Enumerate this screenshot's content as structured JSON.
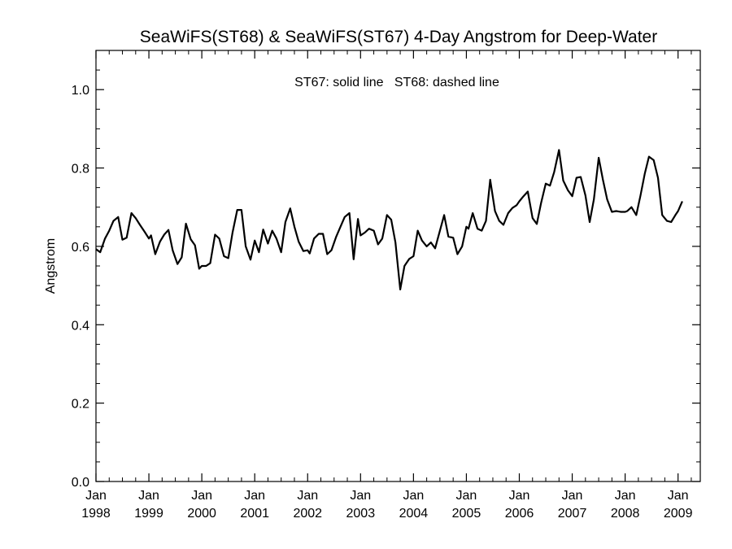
{
  "chart_data": {
    "type": "line",
    "title": "SeaWiFS(ST68) & SeaWiFS(ST67) 4-Day Angstrom for Deep-Water",
    "annotation": "ST67: solid line   ST68: dashed line",
    "xlabel": "",
    "ylabel": "Angstrom",
    "ylim": [
      0.0,
      1.1
    ],
    "xlim": [
      1998.0,
      2009.42
    ],
    "yticks": [
      {
        "value": 0.0,
        "label": "0.0"
      },
      {
        "value": 0.2,
        "label": "0.2"
      },
      {
        "value": 0.4,
        "label": "0.4"
      },
      {
        "value": 0.6,
        "label": "0.6"
      },
      {
        "value": 0.8,
        "label": "0.8"
      },
      {
        "value": 1.0,
        "label": "1.0"
      }
    ],
    "xticks": [
      {
        "value": 1998,
        "month": "Jan",
        "year": "1998"
      },
      {
        "value": 1999,
        "month": "Jan",
        "year": "1999"
      },
      {
        "value": 2000,
        "month": "Jan",
        "year": "2000"
      },
      {
        "value": 2001,
        "month": "Jan",
        "year": "2001"
      },
      {
        "value": 2002,
        "month": "Jan",
        "year": "2002"
      },
      {
        "value": 2003,
        "month": "Jan",
        "year": "2003"
      },
      {
        "value": 2004,
        "month": "Jan",
        "year": "2004"
      },
      {
        "value": 2005,
        "month": "Jan",
        "year": "2005"
      },
      {
        "value": 2006,
        "month": "Jan",
        "year": "2006"
      },
      {
        "value": 2007,
        "month": "Jan",
        "year": "2007"
      },
      {
        "value": 2008,
        "month": "Jan",
        "year": "2008"
      },
      {
        "value": 2009,
        "month": "Jan",
        "year": "2009"
      }
    ],
    "grid": false,
    "series": [
      {
        "style": "solid",
        "color": "#000000",
        "points": [
          [
            1998.0,
            0.593
          ],
          [
            1998.08,
            0.585
          ],
          [
            1998.17,
            0.62
          ],
          [
            1998.25,
            0.64
          ],
          [
            1998.33,
            0.665
          ],
          [
            1998.42,
            0.675
          ],
          [
            1998.5,
            0.617
          ],
          [
            1998.58,
            0.622
          ],
          [
            1998.67,
            0.685
          ],
          [
            1998.75,
            0.672
          ],
          [
            1998.83,
            0.655
          ],
          [
            1998.92,
            0.637
          ],
          [
            1999.0,
            0.62
          ],
          [
            1999.04,
            0.628
          ],
          [
            1999.12,
            0.58
          ],
          [
            1999.21,
            0.612
          ],
          [
            1999.29,
            0.63
          ],
          [
            1999.37,
            0.642
          ],
          [
            1999.45,
            0.59
          ],
          [
            1999.54,
            0.555
          ],
          [
            1999.62,
            0.572
          ],
          [
            1999.7,
            0.658
          ],
          [
            1999.79,
            0.618
          ],
          [
            1999.87,
            0.603
          ],
          [
            1999.95,
            0.543
          ],
          [
            2000.0,
            0.55
          ],
          [
            2000.08,
            0.55
          ],
          [
            2000.16,
            0.557
          ],
          [
            2000.25,
            0.63
          ],
          [
            2000.33,
            0.62
          ],
          [
            2000.42,
            0.575
          ],
          [
            2000.5,
            0.57
          ],
          [
            2000.58,
            0.635
          ],
          [
            2000.67,
            0.693
          ],
          [
            2000.75,
            0.693
          ],
          [
            2000.83,
            0.6
          ],
          [
            2000.92,
            0.566
          ],
          [
            2001.0,
            0.615
          ],
          [
            2001.08,
            0.585
          ],
          [
            2001.16,
            0.643
          ],
          [
            2001.25,
            0.607
          ],
          [
            2001.33,
            0.64
          ],
          [
            2001.41,
            0.62
          ],
          [
            2001.5,
            0.585
          ],
          [
            2001.58,
            0.662
          ],
          [
            2001.67,
            0.697
          ],
          [
            2001.75,
            0.65
          ],
          [
            2001.83,
            0.612
          ],
          [
            2001.92,
            0.588
          ],
          [
            2002.0,
            0.59
          ],
          [
            2002.04,
            0.582
          ],
          [
            2002.12,
            0.62
          ],
          [
            2002.21,
            0.632
          ],
          [
            2002.29,
            0.632
          ],
          [
            2002.37,
            0.58
          ],
          [
            2002.45,
            0.59
          ],
          [
            2002.54,
            0.625
          ],
          [
            2002.62,
            0.65
          ],
          [
            2002.7,
            0.675
          ],
          [
            2002.79,
            0.685
          ],
          [
            2002.87,
            0.567
          ],
          [
            2002.95,
            0.67
          ],
          [
            2003.0,
            0.628
          ],
          [
            2003.08,
            0.635
          ],
          [
            2003.16,
            0.645
          ],
          [
            2003.25,
            0.64
          ],
          [
            2003.33,
            0.605
          ],
          [
            2003.41,
            0.62
          ],
          [
            2003.5,
            0.68
          ],
          [
            2003.58,
            0.668
          ],
          [
            2003.66,
            0.61
          ],
          [
            2003.75,
            0.49
          ],
          [
            2003.83,
            0.55
          ],
          [
            2003.92,
            0.568
          ],
          [
            2004.0,
            0.575
          ],
          [
            2004.08,
            0.64
          ],
          [
            2004.16,
            0.615
          ],
          [
            2004.25,
            0.6
          ],
          [
            2004.33,
            0.61
          ],
          [
            2004.41,
            0.595
          ],
          [
            2004.5,
            0.64
          ],
          [
            2004.58,
            0.68
          ],
          [
            2004.66,
            0.625
          ],
          [
            2004.75,
            0.622
          ],
          [
            2004.83,
            0.58
          ],
          [
            2004.92,
            0.6
          ],
          [
            2005.0,
            0.65
          ],
          [
            2005.04,
            0.645
          ],
          [
            2005.12,
            0.685
          ],
          [
            2005.21,
            0.645
          ],
          [
            2005.29,
            0.64
          ],
          [
            2005.37,
            0.665
          ],
          [
            2005.45,
            0.77
          ],
          [
            2005.54,
            0.69
          ],
          [
            2005.62,
            0.665
          ],
          [
            2005.7,
            0.655
          ],
          [
            2005.79,
            0.685
          ],
          [
            2005.87,
            0.698
          ],
          [
            2005.95,
            0.705
          ],
          [
            2006.0,
            0.715
          ],
          [
            2006.08,
            0.728
          ],
          [
            2006.16,
            0.74
          ],
          [
            2006.25,
            0.672
          ],
          [
            2006.33,
            0.657
          ],
          [
            2006.41,
            0.71
          ],
          [
            2006.5,
            0.76
          ],
          [
            2006.58,
            0.755
          ],
          [
            2006.66,
            0.79
          ],
          [
            2006.75,
            0.846
          ],
          [
            2006.83,
            0.768
          ],
          [
            2006.92,
            0.743
          ],
          [
            2007.0,
            0.728
          ],
          [
            2007.08,
            0.775
          ],
          [
            2007.16,
            0.777
          ],
          [
            2007.25,
            0.73
          ],
          [
            2007.33,
            0.662
          ],
          [
            2007.41,
            0.72
          ],
          [
            2007.5,
            0.826
          ],
          [
            2007.58,
            0.77
          ],
          [
            2007.66,
            0.72
          ],
          [
            2007.75,
            0.688
          ],
          [
            2007.83,
            0.69
          ],
          [
            2007.92,
            0.688
          ],
          [
            2008.0,
            0.688
          ],
          [
            2008.04,
            0.69
          ],
          [
            2008.12,
            0.7
          ],
          [
            2008.21,
            0.68
          ],
          [
            2008.29,
            0.73
          ],
          [
            2008.37,
            0.785
          ],
          [
            2008.45,
            0.829
          ],
          [
            2008.54,
            0.82
          ],
          [
            2008.62,
            0.775
          ],
          [
            2008.7,
            0.68
          ],
          [
            2008.79,
            0.665
          ],
          [
            2008.87,
            0.662
          ],
          [
            2008.95,
            0.68
          ],
          [
            2009.0,
            0.69
          ],
          [
            2009.08,
            0.715
          ]
        ]
      }
    ]
  }
}
